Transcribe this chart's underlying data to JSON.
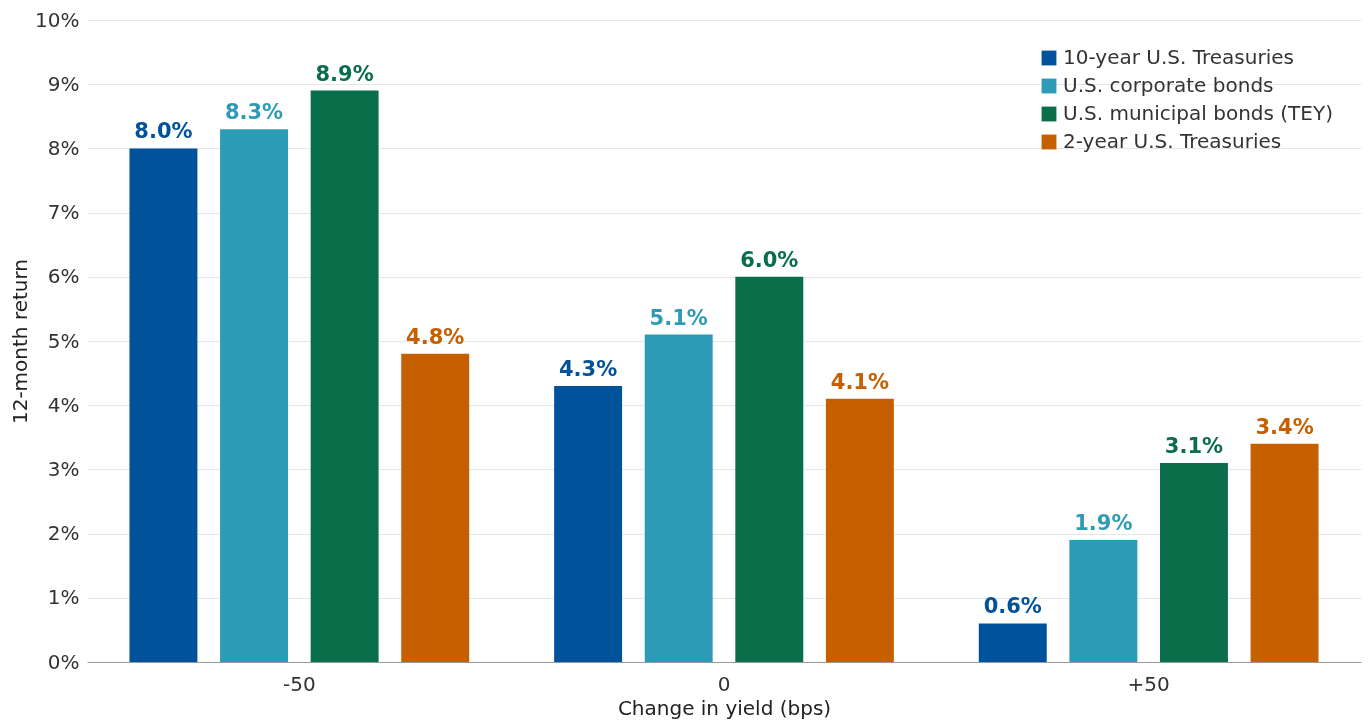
{
  "chart_data": {
    "type": "bar",
    "xlabel": "Change in yield (bps)",
    "ylabel": "12-month return",
    "categories": [
      "-50",
      "0",
      "+50"
    ],
    "series": [
      {
        "name": "10-year U.S. Treasuries",
        "color": "#00529b",
        "values": [
          8.0,
          4.3,
          0.6
        ],
        "value_labels": [
          "8.0%",
          "4.3%",
          "0.6%"
        ]
      },
      {
        "name": "U.S. corporate bonds",
        "color": "#2e9bb6",
        "values": [
          8.3,
          5.1,
          1.9
        ],
        "value_labels": [
          "8.3%",
          "5.1%",
          "1.9%"
        ]
      },
      {
        "name": "U.S. municipal bonds (TEY)",
        "color": "#0a6e4b",
        "values": [
          8.9,
          6.0,
          3.1
        ],
        "value_labels": [
          "8.9%",
          "6.0%",
          "3.1%"
        ]
      },
      {
        "name": "2-year U.S. Treasuries",
        "color": "#c65f00",
        "values": [
          4.8,
          4.1,
          3.4
        ],
        "value_labels": [
          "4.8%",
          "4.1%",
          "3.4%"
        ]
      }
    ],
    "ylim": [
      0,
      10
    ],
    "yticks": [
      {
        "value": 0,
        "label": "0%"
      },
      {
        "value": 1,
        "label": "1%"
      },
      {
        "value": 2,
        "label": "2%"
      },
      {
        "value": 3,
        "label": "3%"
      },
      {
        "value": 4,
        "label": "4%"
      },
      {
        "value": 5,
        "label": "5%"
      },
      {
        "value": 6,
        "label": "6%"
      },
      {
        "value": 7,
        "label": "7%"
      },
      {
        "value": 8,
        "label": "8%"
      },
      {
        "value": 9,
        "label": "9%"
      },
      {
        "value": 10,
        "label": "10%"
      }
    ],
    "grid": "y",
    "legend": "top right"
  }
}
